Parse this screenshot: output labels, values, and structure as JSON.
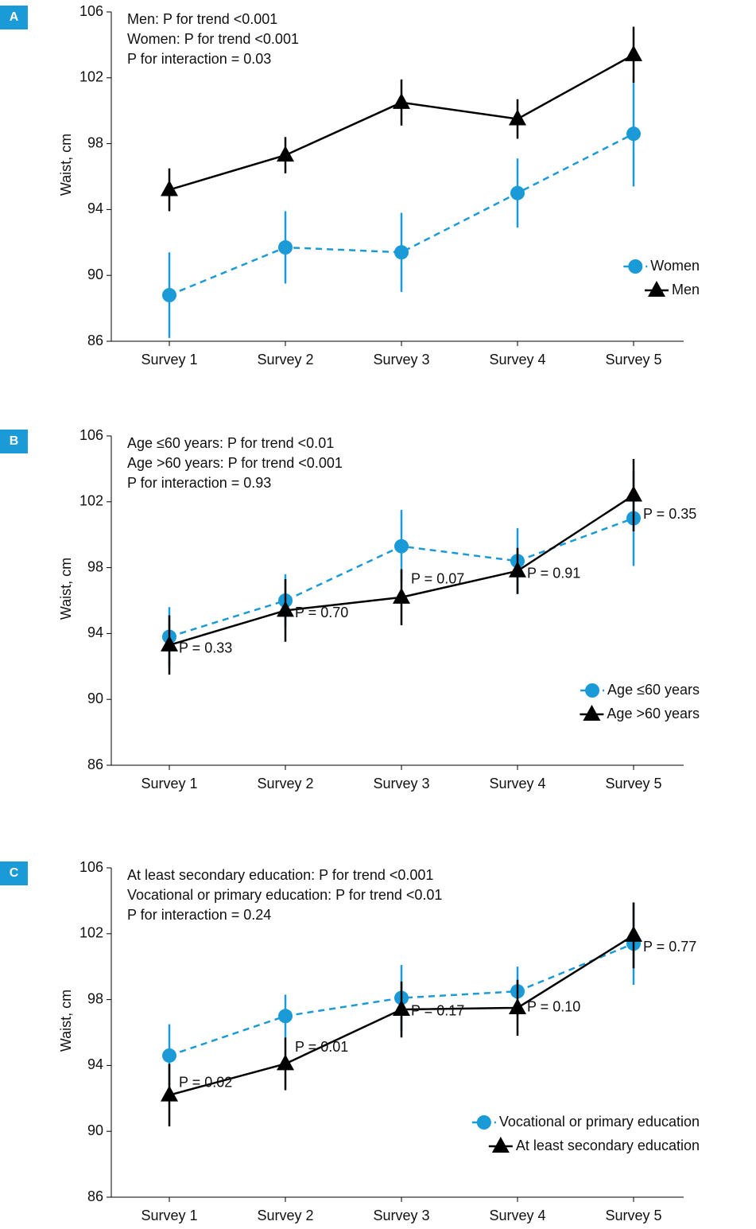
{
  "chart_data": [
    {
      "type": "line",
      "panel_label": "A",
      "annotations": [
        "Men: P for trend <0.001",
        "Women: P for trend <0.001",
        "P for interaction = 0.03"
      ],
      "ylabel": "Waist, cm",
      "categories": [
        "Survey 1",
        "Survey 2",
        "Survey 3",
        "Survey 4",
        "Survey 5"
      ],
      "series": [
        {
          "name": "Women",
          "color": "#1a9ad6",
          "marker": "circle",
          "dashed": true,
          "values": [
            88.8,
            91.7,
            91.4,
            95.0,
            98.6
          ],
          "errors": [
            2.6,
            2.2,
            2.4,
            2.1,
            3.2
          ]
        },
        {
          "name": "Men",
          "color": "#000000",
          "marker": "triangle",
          "dashed": false,
          "values": [
            95.2,
            97.3,
            100.5,
            99.5,
            103.4
          ],
          "errors": [
            1.3,
            1.1,
            1.4,
            1.2,
            1.7
          ]
        }
      ],
      "ylim": [
        86,
        106
      ],
      "yticks": [
        86,
        90,
        94,
        98,
        102,
        106
      ],
      "legend": "lower right"
    },
    {
      "type": "line",
      "panel_label": "B",
      "annotations": [
        "Age ≤60 years: P for trend <0.01",
        "Age >60 years: P for trend <0.001",
        "P for interaction = 0.93"
      ],
      "ylabel": "Waist, cm",
      "categories": [
        "Survey 1",
        "Survey 2",
        "Survey 3",
        "Survey 4",
        "Survey 5"
      ],
      "series": [
        {
          "name": "Age ≤60 years",
          "color": "#1a9ad6",
          "marker": "circle",
          "dashed": true,
          "values": [
            93.8,
            96.0,
            99.3,
            98.4,
            101.0
          ],
          "errors": [
            1.8,
            1.6,
            2.2,
            2.0,
            2.9
          ]
        },
        {
          "name": "Age >60 years",
          "color": "#000000",
          "marker": "triangle",
          "dashed": false,
          "values": [
            93.3,
            95.4,
            96.2,
            97.8,
            102.4
          ],
          "errors": [
            1.8,
            1.9,
            1.7,
            1.4,
            2.2
          ]
        }
      ],
      "point_labels": [
        "P = 0.33",
        "P = 0.70",
        "P = 0.07",
        "P = 0.91",
        "P = 0.35"
      ],
      "ylim": [
        86,
        106
      ],
      "yticks": [
        86,
        90,
        94,
        98,
        102,
        106
      ],
      "legend": "lower right"
    },
    {
      "type": "line",
      "panel_label": "C",
      "annotations": [
        "At least secondary education: P for trend <0.001",
        "Vocational or primary education: P for trend <0.01",
        "P for interaction = 0.24"
      ],
      "ylabel": "Waist, cm",
      "categories": [
        "Survey 1",
        "Survey 2",
        "Survey 3",
        "Survey 4",
        "Survey 5"
      ],
      "series": [
        {
          "name": "Vocational or primary education",
          "color": "#1a9ad6",
          "marker": "circle",
          "dashed": true,
          "values": [
            94.6,
            97.0,
            98.1,
            98.5,
            101.4
          ],
          "errors": [
            1.9,
            1.3,
            2.0,
            1.5,
            2.5
          ]
        },
        {
          "name": "At least secondary education",
          "color": "#000000",
          "marker": "triangle",
          "dashed": false,
          "values": [
            92.2,
            94.1,
            97.4,
            97.5,
            101.9
          ],
          "errors": [
            1.9,
            1.6,
            1.7,
            1.7,
            2.0
          ]
        }
      ],
      "point_labels": [
        "P = 0.02",
        "P = 0.01",
        "P = 0.17",
        "P = 0.10",
        "P = 0.77"
      ],
      "ylim": [
        86,
        106
      ],
      "yticks": [
        86,
        90,
        94,
        98,
        102,
        106
      ],
      "legend": "lower right"
    }
  ]
}
